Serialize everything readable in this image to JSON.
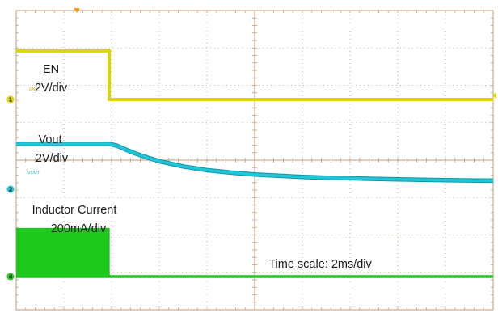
{
  "chart_data": {
    "type": "line",
    "title": "",
    "annotations": {
      "en": [
        "EN",
        "2V/div"
      ],
      "vout": [
        "Vout",
        "2V/div"
      ],
      "inductor": [
        "Inductor Current",
        "200mA/div"
      ],
      "timescale": "Time scale: 2ms/div"
    },
    "trace_tags": {
      "en": "EN",
      "vout": "VOUT"
    },
    "channel_markers": [
      "1",
      "2",
      "4"
    ],
    "x_unit": "ms",
    "xlim": [
      0,
      20
    ],
    "grid": true,
    "grid_divisions": {
      "x": 10,
      "y": 8
    },
    "colors": {
      "en": "#e0d400",
      "vout": "#21c6d6",
      "vout_edge": "#0f96a8",
      "inductor": "#1ec91e",
      "grid": "#c79a73",
      "trigger": "#f0a020"
    },
    "series": [
      {
        "name": "EN",
        "channel": "1",
        "x": [
          0,
          3.9,
          3.9,
          20
        ],
        "y": [
          2.6,
          2.6,
          0,
          0
        ]
      },
      {
        "name": "Vout",
        "channel": "2",
        "x": [
          0,
          3.9,
          4.2,
          4.6,
          5,
          5.5,
          6,
          7,
          8,
          9,
          10,
          11,
          12,
          13,
          14,
          15,
          16,
          17,
          18,
          19,
          20
        ],
        "y": [
          2.42,
          2.42,
          2.34,
          2.12,
          1.91,
          1.69,
          1.5,
          1.22,
          1.02,
          0.89,
          0.79,
          0.72,
          0.66,
          0.62,
          0.59,
          0.56,
          0.53,
          0.51,
          0.49,
          0.47,
          0.46
        ]
      },
      {
        "name": "Inductor Current",
        "channel": "4",
        "x": [
          0,
          3.9,
          3.9,
          20
        ],
        "y": [
          260,
          260,
          0,
          0
        ]
      }
    ]
  }
}
